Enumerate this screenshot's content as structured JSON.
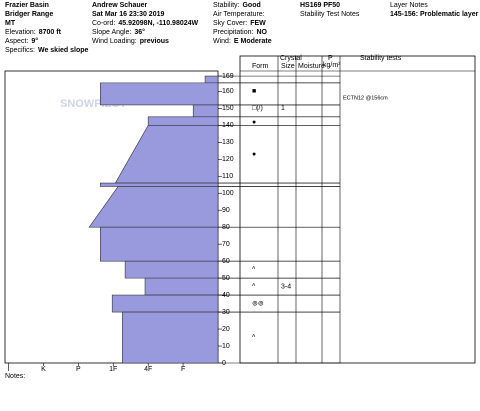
{
  "header": {
    "col1": [
      "Frazier Basin",
      "Bridger Range",
      "MT"
    ],
    "col1_fields": [
      {
        "label": "Elevation:",
        "value": "8700 ft"
      },
      {
        "label": "Aspect:",
        "value": "9°"
      },
      {
        "label": "Specifics:",
        "value": "We skied slope"
      }
    ],
    "col2": [
      "Andrew Schauer",
      "Sat Mar 16 23:30 2019"
    ],
    "col2_fields": [
      {
        "label": "Co-ord:",
        "value": "45.92098N, -110.98024W"
      },
      {
        "label": "Slope Angle:",
        "value": "36°"
      },
      {
        "label": "Wind Loading:",
        "value": "previous"
      }
    ],
    "col3_fields": [
      {
        "label": "Stability:",
        "value": "Good"
      },
      {
        "label": "Air Temperature:",
        "value": ""
      },
      {
        "label": "Sky Cover:",
        "value": "FEW"
      },
      {
        "label": "Precipitation:",
        "value": "NO"
      },
      {
        "label": "Wind:",
        "value": "E Moderate"
      }
    ],
    "col4": [
      "HS169 PF50",
      "Stability Test Notes"
    ],
    "col5": [
      "Layer Notes",
      "145-156: Problematic layer"
    ]
  },
  "watermark": "SNOWPILOT",
  "columns": {
    "form": "Form",
    "crystal": "Crystal",
    "size": "Size",
    "moisture": "Moisture",
    "p": "P",
    "density": "kg/m³",
    "stability": "Stability tests"
  },
  "notes": "Notes:",
  "chart_data": {
    "type": "hardness-profile",
    "ylim": [
      0,
      172
    ],
    "yticks": [
      0,
      10,
      20,
      30,
      40,
      50,
      60,
      70,
      80,
      90,
      100,
      110,
      120,
      130,
      140,
      150,
      160,
      169
    ],
    "xlim": [
      0,
      6.1
    ],
    "xticks": [
      {
        "value": 6,
        "label": "I"
      },
      {
        "value": 5,
        "label": "K"
      },
      {
        "value": 4,
        "label": "P"
      },
      {
        "value": 3,
        "label": "1F"
      },
      {
        "value": 2,
        "label": "4F"
      },
      {
        "value": 1,
        "label": "F"
      }
    ],
    "color": "#9999dd",
    "layers": [
      {
        "top": 169,
        "bottom": 165,
        "hardness_top": 0.37,
        "hardness_bottom": 0.37
      },
      {
        "top": 165,
        "bottom": 152,
        "hardness_top": 3.37,
        "hardness_bottom": 3.37
      },
      {
        "top": 152,
        "bottom": 145,
        "hardness_top": 0.71,
        "hardness_bottom": 0.71
      },
      {
        "top": 145,
        "bottom": 140,
        "hardness_top": 2.0,
        "hardness_bottom": 2.0
      },
      {
        "top": 140,
        "bottom": 106,
        "hardness_top": 2.0,
        "hardness_bottom": 2.94
      },
      {
        "top": 106,
        "bottom": 104,
        "hardness_top": 3.37,
        "hardness_bottom": 3.37
      },
      {
        "top": 104,
        "bottom": 80,
        "hardness_top": 2.86,
        "hardness_bottom": 3.69
      },
      {
        "top": 80,
        "bottom": 60,
        "hardness_top": 3.37,
        "hardness_bottom": 3.37
      },
      {
        "top": 60,
        "bottom": 50,
        "hardness_top": 2.66,
        "hardness_bottom": 2.66
      },
      {
        "top": 50,
        "bottom": 40,
        "hardness_top": 2.09,
        "hardness_bottom": 2.09
      },
      {
        "top": 40,
        "bottom": 30,
        "hardness_top": 3.03,
        "hardness_bottom": 3.03
      },
      {
        "top": 30,
        "bottom": 0,
        "hardness_top": 2.74,
        "hardness_bottom": 2.74
      }
    ],
    "grains": [
      {
        "depth": 160,
        "form": "■",
        "size": ""
      },
      {
        "depth": 150,
        "form": "□(/)",
        "size": "1"
      },
      {
        "depth": 142,
        "form": "●",
        "size": ""
      },
      {
        "depth": 123,
        "form": "●",
        "size": ""
      },
      {
        "depth": 55,
        "form": "^",
        "size": ""
      },
      {
        "depth": 45,
        "form": "^",
        "size": "3-4"
      },
      {
        "depth": 35,
        "form": "⊚⊚",
        "size": ""
      },
      {
        "depth": 15,
        "form": "^",
        "size": ""
      }
    ],
    "tests": [
      {
        "depth": 156,
        "label": "ECTN12 @156cm"
      }
    ]
  }
}
